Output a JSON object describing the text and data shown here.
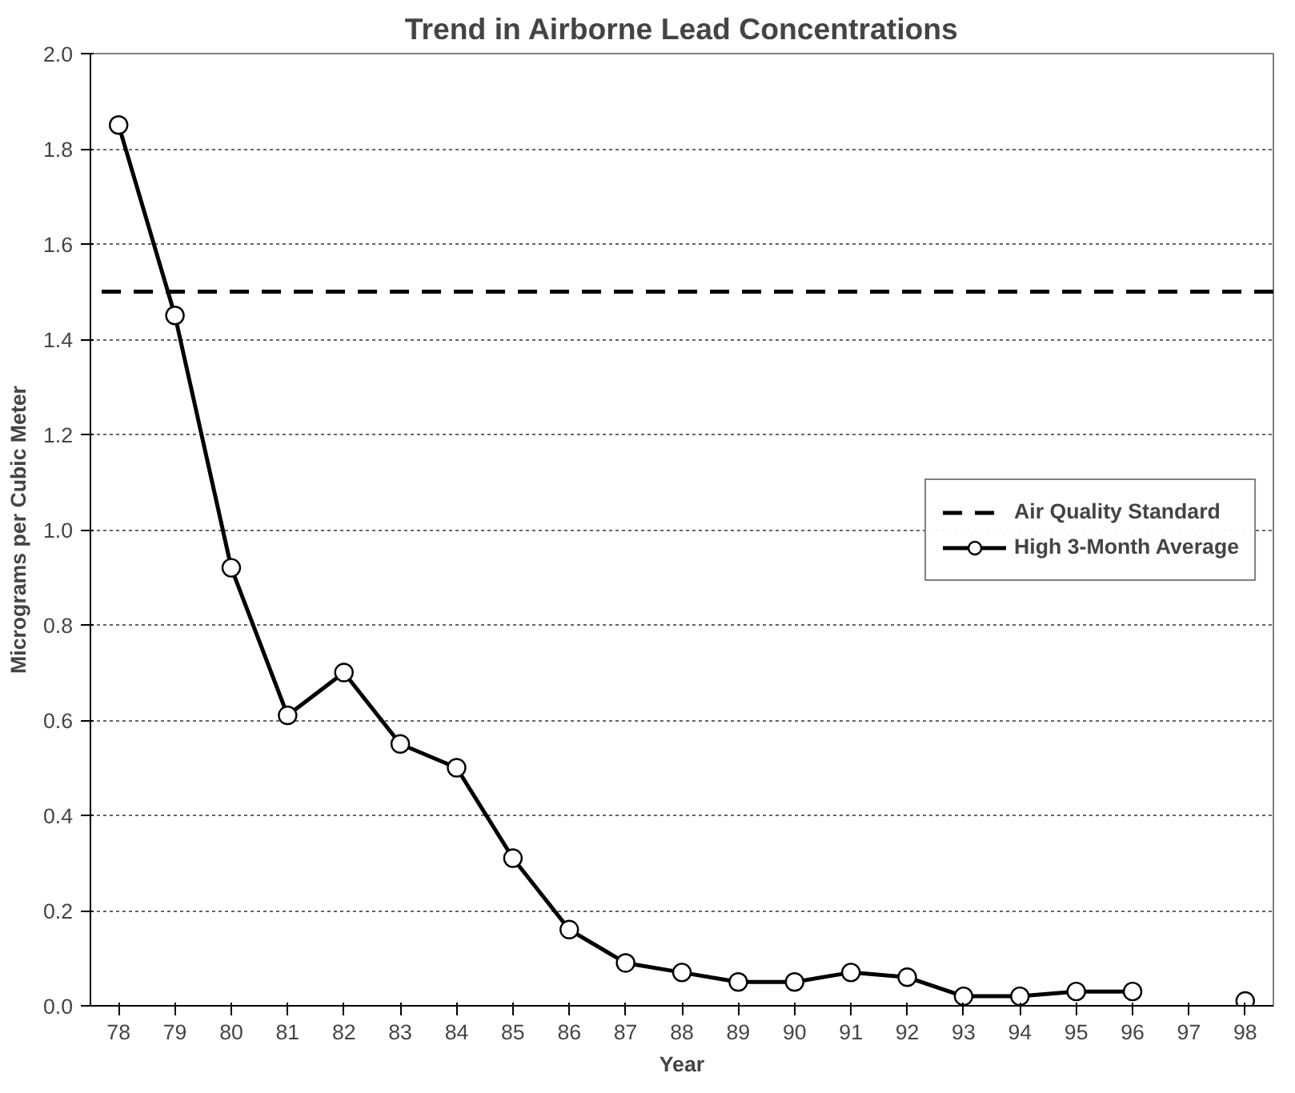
{
  "chart_data": {
    "type": "line",
    "title": "Trend in Airborne Lead Concentrations",
    "xlabel": "Year",
    "ylabel": "Micrograms per Cubic Meter",
    "categories": [
      "78",
      "79",
      "80",
      "81",
      "82",
      "83",
      "84",
      "85",
      "86",
      "87",
      "88",
      "89",
      "90",
      "91",
      "92",
      "93",
      "94",
      "95",
      "96",
      "97",
      "98"
    ],
    "series": [
      {
        "name": "High 3-Month Average",
        "color": "#000000",
        "values": [
          1.85,
          1.45,
          0.92,
          0.61,
          0.7,
          0.55,
          0.5,
          0.31,
          0.16,
          0.09,
          0.07,
          0.05,
          0.05,
          0.07,
          0.06,
          0.02,
          0.02,
          0.03,
          0.03,
          null,
          0.01
        ]
      }
    ],
    "ref_lines": [
      {
        "axis": "y",
        "value": 1.5,
        "label": "Air Quality Standard",
        "color": "#000000",
        "line_style": "dashed"
      }
    ],
    "ylim": [
      0,
      2.0
    ],
    "yticks": [
      {
        "value": 0,
        "label": "0.0"
      },
      {
        "value": 0.2,
        "label": "0.2"
      },
      {
        "value": 0.4,
        "label": "0.4"
      },
      {
        "value": 0.6,
        "label": "0.6"
      },
      {
        "value": 0.8,
        "label": "0.8"
      },
      {
        "value": 1.0,
        "label": "1.0"
      },
      {
        "value": 1.2,
        "label": "1.2"
      },
      {
        "value": 1.4,
        "label": "1.4"
      },
      {
        "value": 1.6,
        "label": "1.6"
      },
      {
        "value": 1.8,
        "label": "1.8"
      },
      {
        "value": 2.0,
        "label": "2.0"
      }
    ],
    "grid": "y",
    "legend": "right",
    "marker": "circle",
    "line_style": "solid"
  }
}
